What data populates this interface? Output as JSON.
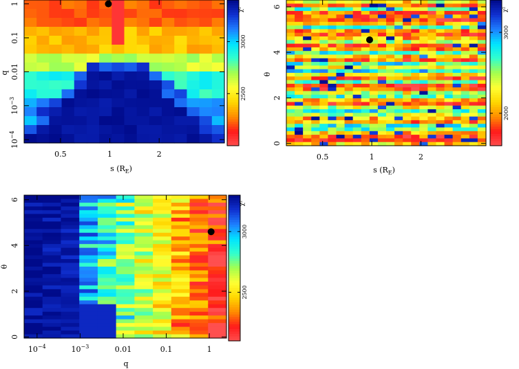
{
  "chart_data": [
    {
      "id": "panel-s-q",
      "type": "heatmap",
      "xlabel": "s (R_E)",
      "xlabel_main": "s (R",
      "xlabel_sub": "E",
      "xlabel_close": ")",
      "ylabel": "q",
      "x_scale": "log",
      "y_scale": "log",
      "xlim": [
        0.3,
        5.0
      ],
      "ylim": [
        8e-05,
        1.3
      ],
      "x_ticks": [
        {
          "value": 0.5,
          "label": "0.5"
        },
        {
          "value": 1,
          "label": "1"
        },
        {
          "value": 2,
          "label": "2"
        }
      ],
      "y_ticks": [
        {
          "value": 0.0001,
          "label": "10",
          "exp": "−4"
        },
        {
          "value": 0.001,
          "label": "10",
          "exp": "−3"
        },
        {
          "value": 0.01,
          "label": "0.01"
        },
        {
          "value": 0.1,
          "label": "0.1"
        },
        {
          "value": 1,
          "label": "1"
        }
      ],
      "best_fit": {
        "x": 0.98,
        "y": 1.0
      },
      "colorbar": {
        "label": "χ²",
        "min": 2000,
        "max": 3400,
        "ticks": [
          {
            "value": 2500,
            "label": "2500"
          },
          {
            "value": 3000,
            "label": "3000"
          }
        ]
      },
      "grid": {
        "nx": 16,
        "ny": 16
      }
    },
    {
      "id": "panel-s-theta",
      "type": "heatmap",
      "xlabel": "s (R_E)",
      "xlabel_main": "s (R",
      "xlabel_sub": "E",
      "xlabel_close": ")",
      "ylabel": "θ",
      "x_scale": "log",
      "y_scale": "linear",
      "xlim": [
        0.3,
        5.0
      ],
      "ylim": [
        -0.1,
        6.3
      ],
      "x_ticks": [
        {
          "value": 0.5,
          "label": "0.5"
        },
        {
          "value": 1,
          "label": "1"
        },
        {
          "value": 2,
          "label": "2"
        }
      ],
      "y_ticks": [
        {
          "value": 0,
          "label": "0"
        },
        {
          "value": 2,
          "label": "2"
        },
        {
          "value": 4,
          "label": "4"
        },
        {
          "value": 6,
          "label": "6"
        }
      ],
      "best_fit": {
        "x": 0.97,
        "y": 4.55
      },
      "colorbar": {
        "label": "χ²",
        "min": 1600,
        "max": 3400,
        "ticks": [
          {
            "value": 2000,
            "label": "2000"
          },
          {
            "value": 3000,
            "label": "3000"
          }
        ]
      },
      "grid": {
        "nx": 24,
        "ny": 40
      }
    },
    {
      "id": "panel-q-theta",
      "type": "heatmap",
      "xlabel": "q",
      "ylabel": "θ",
      "x_scale": "log",
      "y_scale": "linear",
      "xlim": [
        5e-05,
        2.5
      ],
      "ylim": [
        -0.05,
        6.2
      ],
      "x_ticks": [
        {
          "value": 0.0001,
          "label": "10",
          "exp": "−4"
        },
        {
          "value": 0.001,
          "label": "10",
          "exp": "−3"
        },
        {
          "value": 0.01,
          "label": "0.01"
        },
        {
          "value": 0.1,
          "label": "0.1"
        },
        {
          "value": 1,
          "label": "1"
        }
      ],
      "y_ticks": [
        {
          "value": 0,
          "label": "0"
        },
        {
          "value": 2,
          "label": "2"
        },
        {
          "value": 4,
          "label": "4"
        },
        {
          "value": 6,
          "label": "6"
        }
      ],
      "best_fit": {
        "x": 1.1,
        "y": 4.6
      },
      "colorbar": {
        "label": "χ²",
        "min": 2100,
        "max": 3300,
        "ticks": [
          {
            "value": 2500,
            "label": "2500"
          },
          {
            "value": 3000,
            "label": "3000"
          }
        ]
      },
      "grid": {
        "nx": 11,
        "ny": 38
      }
    }
  ],
  "colormap": {
    "name": "jet-reversed",
    "stops": [
      "#ff4f4f",
      "#ff1a1a",
      "#ff8c00",
      "#ffd700",
      "#ffff33",
      "#a6ff4d",
      "#33ffcc",
      "#00e5ff",
      "#1e7fff",
      "#1030d0",
      "#000a8a"
    ]
  }
}
